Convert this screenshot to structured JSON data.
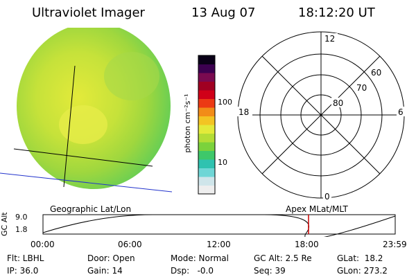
{
  "header": {
    "instrument": "Ultraviolet Imager",
    "date": "13 Aug 07",
    "time": "18:12:20 UT"
  },
  "colorbar": {
    "label": "photon cm⁻²s⁻¹",
    "ticks": [
      "100",
      "10"
    ],
    "colors": [
      "#eeeeee",
      "#cfe5ea",
      "#6fd6d6",
      "#2fc2b0",
      "#3ec86a",
      "#7bd23c",
      "#b4dd36",
      "#e3ea3a",
      "#f3c423",
      "#f28c18",
      "#ec3a14",
      "#d00018",
      "#a00022",
      "#7a0a50",
      "#3c0050",
      "#0a0018"
    ]
  },
  "polar_plot": {
    "mlt_labels": {
      "top": "12",
      "left": "18",
      "right": "6",
      "bottom": "0"
    },
    "lat_labels": [
      "60",
      "70",
      "80"
    ]
  },
  "orbit_strip": {
    "left_title": "Geographic Lat/Lon",
    "right_title": "Apex MLat/MLT",
    "ylabel": "GC Alt",
    "ytick_top": "9.0",
    "ytick_bottom": "1.8",
    "xticks": [
      "00:00",
      "06:00",
      "12:00",
      "18:00",
      "23:59"
    ],
    "marker_color": "#cc0000"
  },
  "status": {
    "filter": "Flt: LBHL",
    "ip": "IP: 36.0",
    "door": "Door: Open",
    "gain": "Gain: 14",
    "mode": "Mode: Normal",
    "dsp": "Dsp:   -0.0",
    "gc_alt": "GC Alt: 2.5 Re",
    "seq": "Seq: 39",
    "glat": "GLat:  18.2",
    "glon": "GLon: 273.2"
  }
}
